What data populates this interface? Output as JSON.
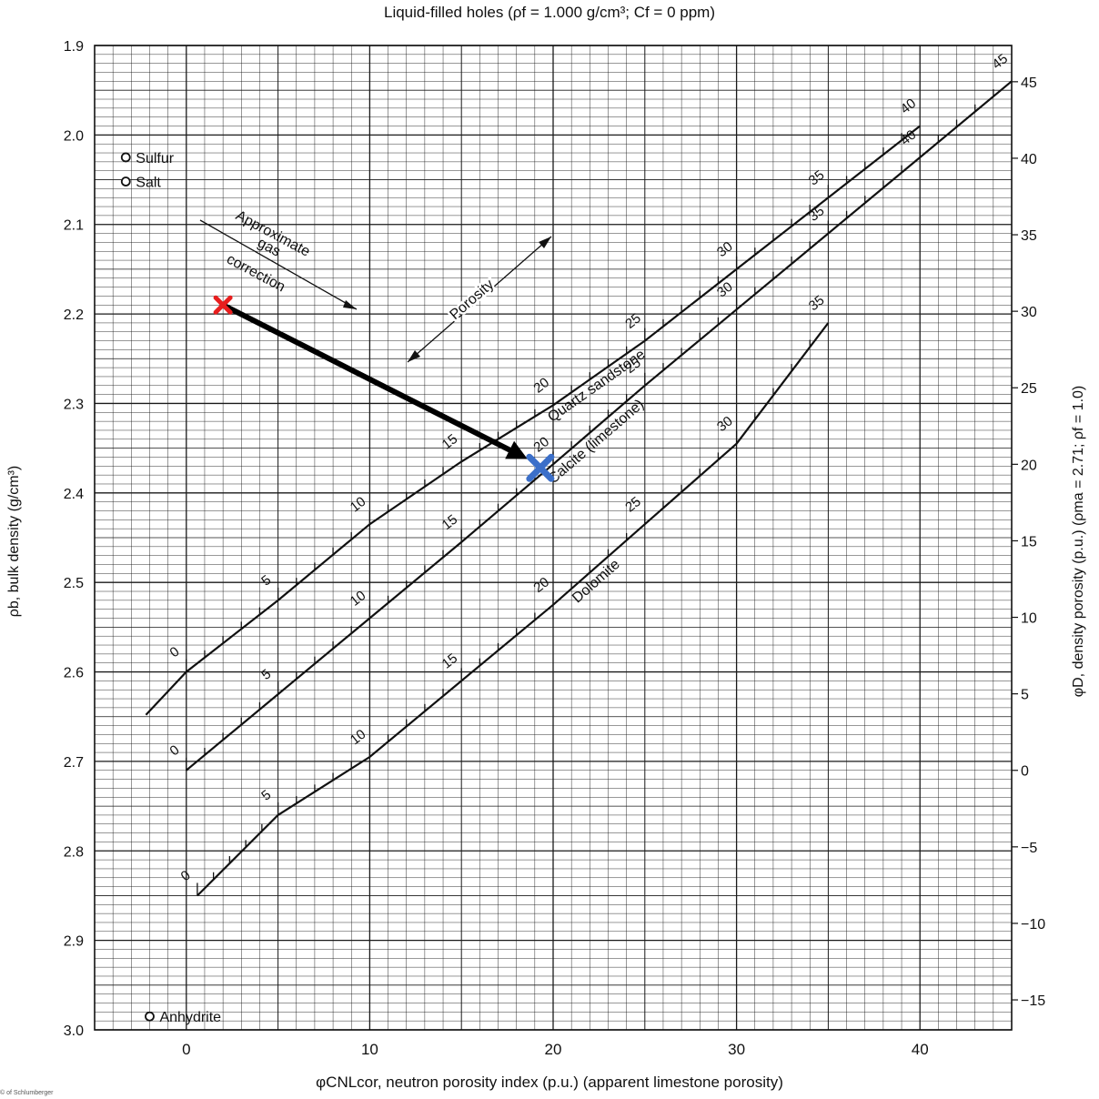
{
  "page": {
    "title": "Liquid-filled holes (ρf = 1.000 g/cm³; Cf = 0 ppm)",
    "xlabel": "φCNLcor, neutron porosity index (p.u.) (apparent limestone porosity)",
    "ylabel_left": "ρb, bulk density (g/cm³)",
    "ylabel_right": "φD, density porosity (p.u.) (ρma = 2.71; ρf = 1.0)",
    "credit": "© of Schlumberger"
  },
  "chart_data": {
    "type": "line",
    "title": "Liquid-filled holes (ρf = 1.000 g/cm³; Cf = 0 ppm)",
    "xlabel": "φCNLcor, neutron porosity index (p.u.) (apparent limestone porosity)",
    "ylabel": "ρb, bulk density (g/cm³)",
    "ylabel_right": "φD, density porosity (p.u.) (ρma = 2.71; ρf = 1.0)",
    "xlim": [
      -5,
      45
    ],
    "ylim": [
      1.9,
      3.0
    ],
    "x_ticks": [
      0,
      10,
      20,
      30,
      40
    ],
    "y_ticks": [
      "1.9",
      "2.0",
      "2.1",
      "2.2",
      "2.3",
      "2.4",
      "2.5",
      "2.6",
      "2.7",
      "2.8",
      "2.9",
      "3.0"
    ],
    "y_right_ticks": [
      "45",
      "40",
      "35",
      "30",
      "25",
      "20",
      "15",
      "10",
      "5",
      "0",
      "−5",
      "−10",
      "−15"
    ],
    "grid": true,
    "series": [
      {
        "name": "Quartz sandstone",
        "x": [
          -2.2,
          0,
          5,
          10,
          15,
          20,
          25,
          30,
          35,
          40
        ],
        "y": [
          2.648,
          2.6,
          2.52,
          2.435,
          2.365,
          2.302,
          2.23,
          2.15,
          2.07,
          1.99
        ],
        "porosity_labels": [
          "0",
          "5",
          "10",
          "15",
          "20",
          "25",
          "30",
          "35",
          "40"
        ],
        "labeled_porosities": [
          0,
          5,
          10,
          15,
          20,
          25,
          30,
          35,
          40
        ]
      },
      {
        "name": "Calcite (limestone)",
        "x": [
          0,
          5,
          10,
          15,
          20,
          25,
          30,
          35,
          40,
          45
        ],
        "y": [
          2.71,
          2.625,
          2.54,
          2.455,
          2.368,
          2.28,
          2.195,
          2.11,
          2.025,
          1.94
        ],
        "porosity_labels": [
          "0",
          "5",
          "10",
          "15",
          "20",
          "25",
          "30",
          "35",
          "40",
          "45"
        ],
        "labeled_porosities": [
          0,
          5,
          10,
          15,
          20,
          25,
          30,
          35,
          40,
          45
        ]
      },
      {
        "name": "Dolomite",
        "x": [
          0.6,
          5,
          10,
          15,
          20,
          25,
          30,
          35
        ],
        "y": [
          2.85,
          2.76,
          2.695,
          2.61,
          2.525,
          2.435,
          2.345,
          2.21
        ],
        "porosity_labels": [
          "0",
          "5",
          "10",
          "15",
          "20",
          "25",
          "30",
          "35"
        ],
        "labeled_porosities": [
          0,
          5,
          10,
          15,
          20,
          25,
          30,
          35
        ]
      }
    ],
    "minerals": [
      {
        "name": "Sulfur",
        "x": -3.3,
        "y": 2.025
      },
      {
        "name": "Salt",
        "x": -3.3,
        "y": 2.052
      },
      {
        "name": "Anhydrite",
        "x": -2.0,
        "y": 2.985
      }
    ],
    "annotations": {
      "gas_correction": "Approximate gas correction",
      "porosity_arrow": "Porosity"
    },
    "markers": [
      {
        "name": "measured point",
        "x": 2.0,
        "y": 2.19,
        "color": "#e81e1e",
        "shape": "x"
      },
      {
        "name": "corrected point",
        "x": 19.3,
        "y": 2.372,
        "color": "#3b6fc9",
        "shape": "x"
      }
    ],
    "arrow": {
      "from": [
        2.0,
        2.19
      ],
      "to": [
        18.6,
        2.362
      ],
      "color": "#000000"
    }
  },
  "colors": {
    "grid": "#1a1a1a",
    "curve": "#111111",
    "red_marker": "#e81e1e",
    "blue_marker": "#3b6fc9"
  }
}
